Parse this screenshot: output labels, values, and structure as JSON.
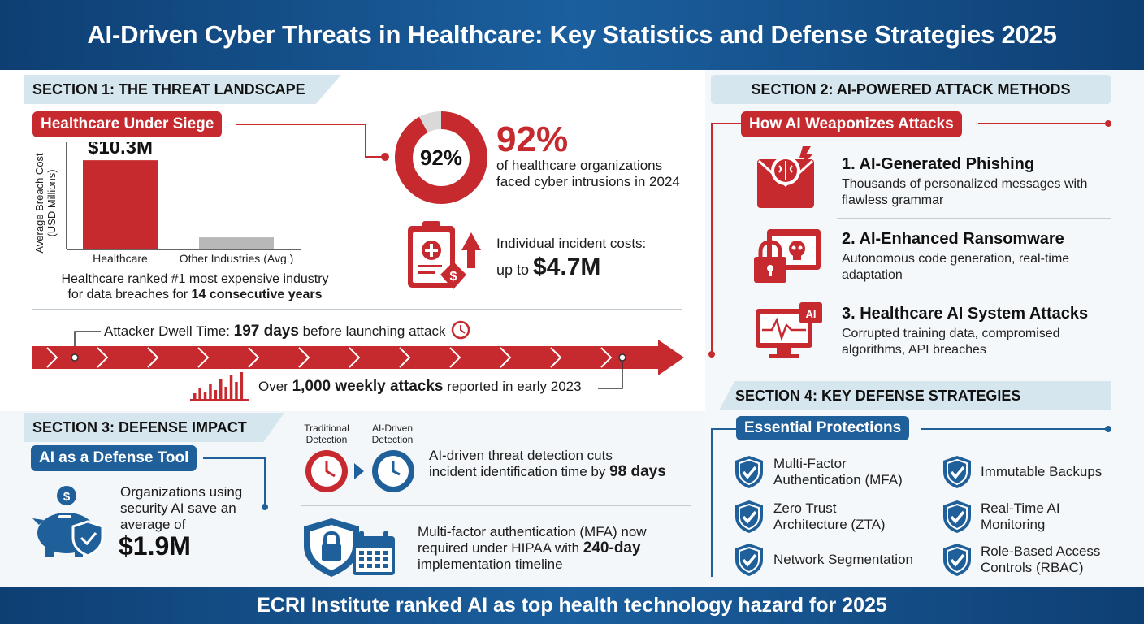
{
  "header": {
    "title": "AI-Driven Cyber Threats in Healthcare: Key Statistics and Defense Strategies 2025"
  },
  "footer": {
    "text": "ECRI Institute ranked AI as top health technology hazard for 2025"
  },
  "section1": {
    "heading": "SECTION 1: THE THREAT LANDSCAPE",
    "pill": "Healthcare Under Siege",
    "chart_note_pre": "Healthcare ranked #1 most expensive industry",
    "chart_note_mid": "for data breaches for ",
    "chart_note_bold": "14 consecutive years",
    "donut_label": "92%",
    "stat_big": "92%",
    "stat_desc1": "of healthcare organizations",
    "stat_desc2": "faced cyber intrusions in 2024",
    "incident_label": "Individual incident costs:",
    "incident_prefix": "up to ",
    "incident_value": "$4.7M",
    "dwell_pre": "Attacker Dwell Time: ",
    "dwell_bold": "197 days",
    "dwell_post": " before launching attack",
    "weekly_pre": "Over ",
    "weekly_bold": "1,000 weekly attacks",
    "weekly_post": " reported in early 2023"
  },
  "chart_data": {
    "type": "bar",
    "categories": [
      "Healthcare",
      "Other Industries (Avg.)"
    ],
    "values": [
      10.3,
      1.4
    ],
    "data_labels": [
      "$10.3M",
      ""
    ],
    "ylabel_line1": "Average Breach Cost",
    "ylabel_line2": "(USD Millions)",
    "ylim": [
      0,
      12
    ],
    "colors": [
      "#c62a2f",
      "#b8b8b8"
    ]
  },
  "section2": {
    "heading": "SECTION 2: AI-POWERED ATTACK METHODS",
    "pill": "How AI Weaponizes Attacks",
    "items": [
      {
        "title": "1. AI-Generated Phishing",
        "desc1": "Thousands of personalized messages with",
        "desc2": "flawless grammar",
        "icon": "brain-mail-icon"
      },
      {
        "title": "2. AI-Enhanced Ransomware",
        "desc1": "Autonomous code generation, real-time",
        "desc2": "adaptation",
        "icon": "lock-skull-icon"
      },
      {
        "title": "3. Healthcare AI System Attacks",
        "desc1": "Corrupted training data, compromised",
        "desc2": "algorithms, API breaches",
        "icon": "ai-monitor-icon"
      }
    ]
  },
  "section3": {
    "heading": "SECTION 3: DEFENSE IMPACT",
    "pill": "AI as a Defense Tool",
    "save_l1": "Organizations using",
    "save_l2": "security AI save an",
    "save_l3": "average of",
    "save_value": "$1.9M",
    "trad_l1": "Traditional",
    "trad_l2": "Detection",
    "aid_l1": "AI-Driven",
    "aid_l2": "Detection",
    "detect_l1": "AI-driven threat detection cuts",
    "detect_l2_pre": "incident identification time by ",
    "detect_l2_bold": "98 days",
    "mfa_l1": "Multi-factor authentication (MFA) now",
    "mfa_l2_pre": "required under HIPAA with ",
    "mfa_l2_bold": "240-day",
    "mfa_l3": "implementation timeline"
  },
  "section4": {
    "heading": "SECTION 4: KEY DEFENSE STRATEGIES",
    "pill": "Essential Protections",
    "left": [
      {
        "l1": "Multi-Factor",
        "l2": "Authentication (MFA)"
      },
      {
        "l1": "Zero Trust",
        "l2": "Architecture (ZTA)"
      },
      {
        "l1": "Network Segmentation",
        "l2": ""
      }
    ],
    "right": [
      {
        "l1": "Immutable Backups",
        "l2": ""
      },
      {
        "l1": "Real-Time AI",
        "l2": "Monitoring"
      },
      {
        "l1": "Role-Based Access",
        "l2": "Controls (RBAC)"
      }
    ]
  },
  "colors": {
    "red": "#c62a2f",
    "blue": "#1f5f9a",
    "navy": "#0e3f73"
  }
}
